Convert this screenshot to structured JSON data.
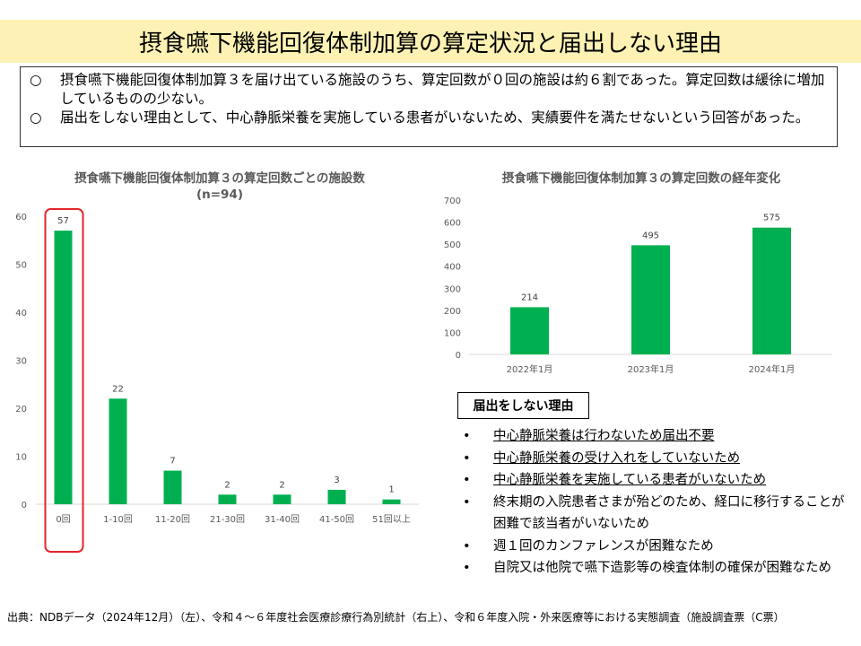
{
  "title": "摂食嚥下機能回復体制加算の算定状況と届出しない理由",
  "summary": [
    {
      "mark": "○",
      "text": "摂食嚥下機能回復体制加算３を届け出ている施設のうち、算定回数が０回の施設は約６割であった。算定回数は緩徐に増加しているものの少ない。"
    },
    {
      "mark": "○",
      "text": "届出をしない理由として、中心静脈栄養を実施している患者がいないため、実績要件を満たせないという回答があった。"
    }
  ],
  "chart_data": [
    {
      "type": "bar",
      "title": "摂食嚥下機能回復体制加算３の算定回数ごとの施設数",
      "subtitle": "(n=94)",
      "categories": [
        "0回",
        "1-10回",
        "11-20回",
        "21-30回",
        "31-40回",
        "41-50回",
        "51回以上"
      ],
      "values": [
        57,
        22,
        7,
        2,
        2,
        3,
        1
      ],
      "ylim": [
        0,
        60
      ],
      "yticks": [
        0,
        10,
        20,
        30,
        40,
        50,
        60
      ],
      "grid": false,
      "highlight": "0回",
      "color": "#00b050"
    },
    {
      "type": "bar",
      "title": "摂食嚥下機能回復体制加算３の算定回数の経年変化",
      "categories": [
        "2022年1月",
        "2023年1月",
        "2024年1月"
      ],
      "values": [
        214,
        495,
        575
      ],
      "ylim": [
        0,
        700
      ],
      "yticks": [
        0,
        100,
        200,
        300,
        400,
        500,
        600,
        700
      ],
      "grid": false,
      "color": "#00b050"
    }
  ],
  "reasons": {
    "heading": "届出をしない理由",
    "items": [
      {
        "text": "中心静脈栄養は行わないため届出不要",
        "underline": true
      },
      {
        "text": "中心静脈栄養の受け入れをしていないため",
        "underline": true
      },
      {
        "text": "中心静脈栄養を実施している患者がいないため",
        "underline": true
      },
      {
        "text": "終末期の入院患者さまが殆どのため、経口に移行することが困難で該当者がいないため",
        "underline": false
      },
      {
        "text": "週１回のカンファレンスが困難なため",
        "underline": false
      },
      {
        "text": "自院又は他院で嚥下造影等の検査体制の確保が困難なため",
        "underline": false
      }
    ],
    "bullet": "•"
  },
  "source": "出典：NDBデータ（2024年12月）（左）、令和４～６年度社会医療診療行為別統計（右上）、令和６年度入院・外来医療等における実態調査（施設調査票（C票）",
  "colors": {
    "bar": "#00b050",
    "highlight_border": "#e3262b",
    "title_band": "#fdf2b3"
  }
}
